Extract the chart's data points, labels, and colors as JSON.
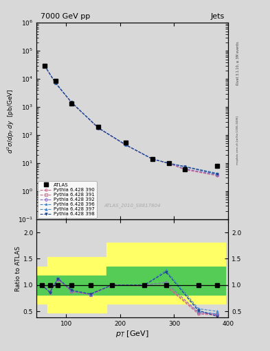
{
  "title_left": "7000 GeV pp",
  "title_right": "Jets",
  "watermark": "ATLAS_2010_S8817804",
  "rivet_label": "Rivet 3.1.10, ≥ 3M events",
  "arxiv_label": "mcplots.cern.ch [arXiv:1306.3436]",
  "ylabel_main": "$d^2\\sigma/dp_T dy$  [pb/GeV]",
  "ylabel_ratio": "Ratio to ATLAS",
  "xlabel": "$p_T$ [GeV]",
  "pt_values": [
    60,
    80,
    110,
    160,
    210,
    260,
    290,
    320,
    380
  ],
  "atlas_values": [
    30000,
    8500,
    1300,
    200,
    55,
    14,
    10,
    6,
    8
  ],
  "series": [
    {
      "label": "Pythia 6.428 390",
      "color": "#cc6688",
      "marker": "o",
      "linestyle": "--",
      "ratio": [
        1.0,
        0.88,
        1.12,
        0.88,
        0.82,
        1.0,
        1.0,
        0.98,
        0.45,
        0.43
      ]
    },
    {
      "label": "Pythia 6.428 391",
      "color": "#cc6688",
      "marker": "s",
      "linestyle": "--",
      "ratio": [
        1.0,
        0.86,
        1.1,
        0.88,
        0.82,
        1.0,
        0.98,
        1.0,
        0.47,
        0.44
      ]
    },
    {
      "label": "Pythia 6.428 392",
      "color": "#8866cc",
      "marker": "D",
      "linestyle": "--",
      "ratio": [
        1.0,
        0.87,
        1.12,
        0.88,
        0.82,
        1.0,
        1.0,
        1.05,
        0.48,
        0.44
      ]
    },
    {
      "label": "Pythia 6.428 396",
      "color": "#4488cc",
      "marker": "*",
      "linestyle": "--",
      "ratio": [
        1.0,
        0.87,
        1.13,
        0.9,
        0.83,
        1.0,
        1.0,
        1.25,
        0.5,
        0.45
      ]
    },
    {
      "label": "Pythia 6.428 397",
      "color": "#4488cc",
      "marker": "^",
      "linestyle": "--",
      "ratio": [
        1.0,
        0.87,
        1.13,
        0.9,
        0.83,
        1.0,
        1.0,
        1.28,
        0.55,
        0.5
      ]
    },
    {
      "label": "Pythia 6.428 398",
      "color": "#224488",
      "marker": "v",
      "linestyle": "--",
      "ratio": [
        1.0,
        0.86,
        1.12,
        0.9,
        0.83,
        1.0,
        1.0,
        1.25,
        0.52,
        0.4
      ]
    }
  ],
  "pt_ratio": [
    55,
    70,
    85,
    110,
    145,
    185,
    245,
    285,
    345,
    380
  ],
  "ratio_band_yellow_steps": {
    "x": [
      45,
      65,
      65,
      175,
      175,
      270,
      270,
      395
    ],
    "low": [
      0.65,
      0.65,
      0.47,
      0.47,
      0.65,
      0.65,
      0.65,
      0.65
    ],
    "high": [
      1.35,
      1.35,
      1.53,
      1.53,
      1.8,
      1.8,
      1.8,
      1.8
    ]
  },
  "ratio_band_green_steps": {
    "x": [
      45,
      65,
      65,
      175,
      175,
      270,
      270,
      395
    ],
    "low": [
      0.82,
      0.82,
      0.82,
      0.82,
      0.82,
      0.82,
      0.82,
      0.82
    ],
    "high": [
      1.18,
      1.18,
      1.18,
      1.18,
      1.35,
      1.35,
      1.35,
      1.35
    ]
  },
  "xlim": [
    45,
    400
  ],
  "ylim_main_log": [
    -1,
    6
  ],
  "ylim_ratio": [
    0.38,
    2.25
  ],
  "ratio_yticks": [
    0.5,
    1.0,
    1.5,
    2.0
  ],
  "bg_color": "#d8d8d8"
}
